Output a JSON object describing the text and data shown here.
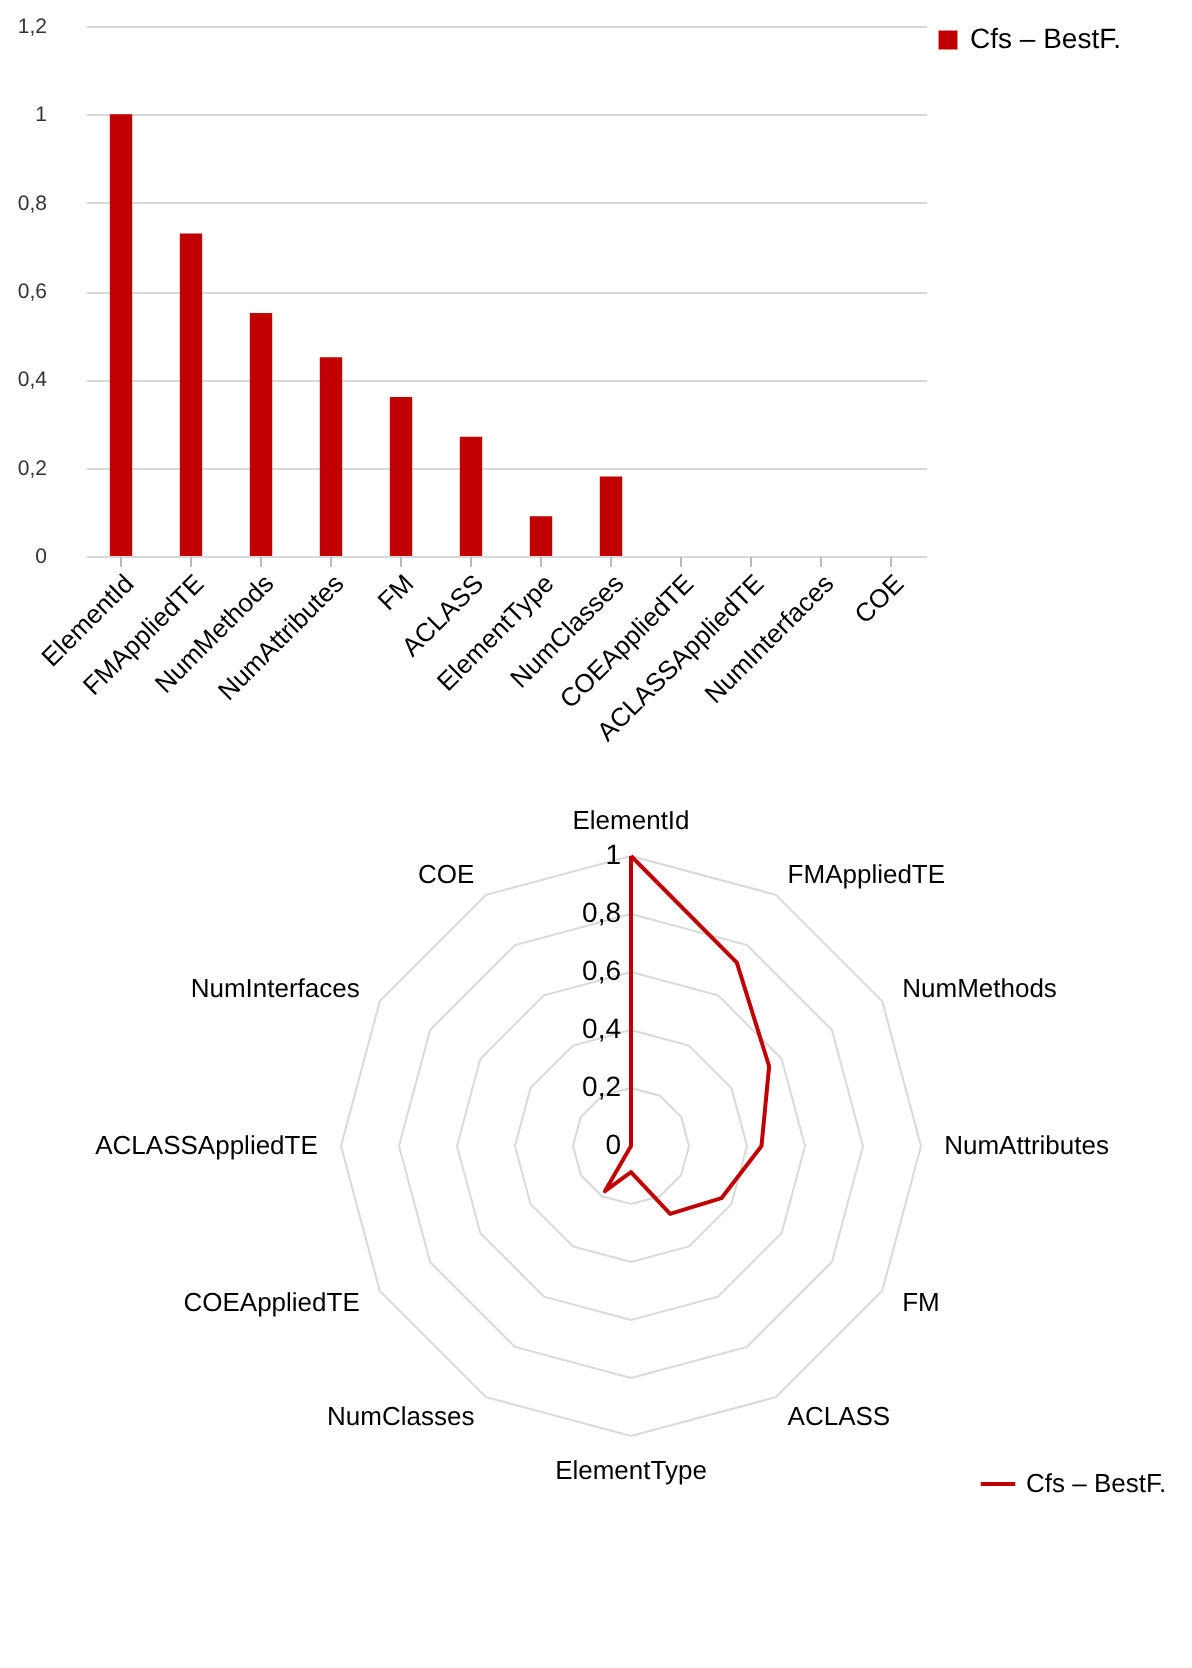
{
  "chart_data": [
    {
      "type": "bar",
      "categories": [
        "ElementId",
        "FMAppliedTE",
        "NumMethods",
        "NumAttributes",
        "FM",
        "ACLASS",
        "ElementType",
        "NumClasses",
        "COEAppliedTE",
        "ACLASSAppliedTE",
        "NumInterfaces",
        "COE"
      ],
      "series": [
        {
          "name": "Cfs – BestF.",
          "color": "#c00000",
          "values": [
            1,
            0.73,
            0.55,
            0.45,
            0.36,
            0.27,
            0.09,
            0.18,
            0,
            0,
            0,
            0
          ]
        }
      ],
      "ylim": [
        0,
        1.2
      ],
      "yticks": [
        {
          "value": 0,
          "label": "0"
        },
        {
          "value": 0.2,
          "label": "0,2"
        },
        {
          "value": 0.4,
          "label": "0,4"
        },
        {
          "value": 0.6,
          "label": "0,6"
        },
        {
          "value": 0.8,
          "label": "0,8"
        },
        {
          "value": 1,
          "label": "1"
        },
        {
          "value": 1.2,
          "label": "1,2"
        }
      ],
      "grid": "y",
      "legend": "top right"
    },
    {
      "type": "radar",
      "categories": [
        "ElementId",
        "FMAppliedTE",
        "NumMethods",
        "NumAttributes",
        "FM",
        "ACLASS",
        "ElementType",
        "NumClasses",
        "COEAppliedTE",
        "ACLASSAppliedTE",
        "NumInterfaces",
        "COE"
      ],
      "series": [
        {
          "name": "Cfs – BestF.",
          "color": "#c00000",
          "values": [
            1,
            0.73,
            0.55,
            0.45,
            0.36,
            0.27,
            0.09,
            0.18,
            0,
            0,
            0,
            0
          ]
        }
      ],
      "ylim": [
        0,
        1
      ],
      "yticks": [
        0,
        {
          "value": 0.2,
          "label": "0,2"
        },
        {
          "value": 0.4,
          "label": "0,4"
        },
        {
          "value": 0.6,
          "label": "0,6"
        },
        {
          "value": 0.8,
          "label": "0,8"
        },
        1
      ],
      "grid": true,
      "legend": "bottom right"
    }
  ]
}
